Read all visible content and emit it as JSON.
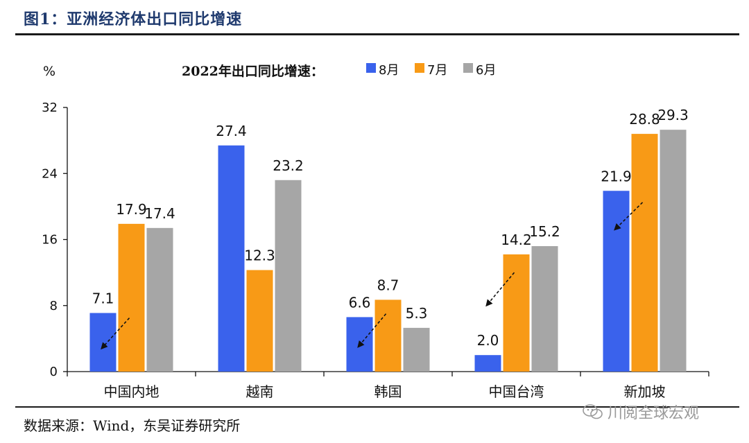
{
  "header": {
    "title": "图1：亚洲经济体出口同比增速"
  },
  "footer": {
    "source": "数据来源：Wind，东吴证券研究所",
    "watermark": "川阅全球宏观"
  },
  "chart_data": {
    "type": "bar",
    "title": "2022年出口同比增速：",
    "ylabel": "%",
    "xlabel": "",
    "ylim": [
      0,
      32
    ],
    "yticks": [
      0,
      8,
      16,
      24,
      32
    ],
    "grid": false,
    "legend_position": "top",
    "categories": [
      "中国内地",
      "越南",
      "韩国",
      "中国台湾",
      "新加坡"
    ],
    "series": [
      {
        "name": "8月",
        "color": "#3a62ec",
        "values": [
          7.1,
          27.4,
          6.6,
          2.0,
          21.9
        ],
        "labels": [
          "7.1",
          "27.4",
          "6.6",
          "2.0",
          "21.9"
        ]
      },
      {
        "name": "7月",
        "color": "#f89a16",
        "values": [
          17.9,
          12.3,
          8.7,
          14.2,
          28.8
        ],
        "labels": [
          "17.9",
          "12.3",
          "8.7",
          "14.2",
          "28.8"
        ]
      },
      {
        "name": "6月",
        "color": "#a6a6a6",
        "values": [
          17.4,
          23.2,
          5.3,
          15.2,
          29.3
        ],
        "labels": [
          "17.4",
          "23.2",
          "5.3",
          "15.2",
          "29.3"
        ]
      }
    ],
    "annotations": [
      {
        "type": "dashed-arrow",
        "category": "中国内地",
        "from_value": 6.5,
        "to_value": 2.8
      },
      {
        "type": "dashed-arrow",
        "category": "韩国",
        "from_value": 7.0,
        "to_value": 3.0
      },
      {
        "type": "dashed-arrow",
        "category": "中国台湾",
        "from_value": 12.0,
        "to_value": 8.0
      },
      {
        "type": "dashed-arrow",
        "category": "新加坡",
        "from_value": 20.5,
        "to_value": 17.2
      }
    ]
  }
}
